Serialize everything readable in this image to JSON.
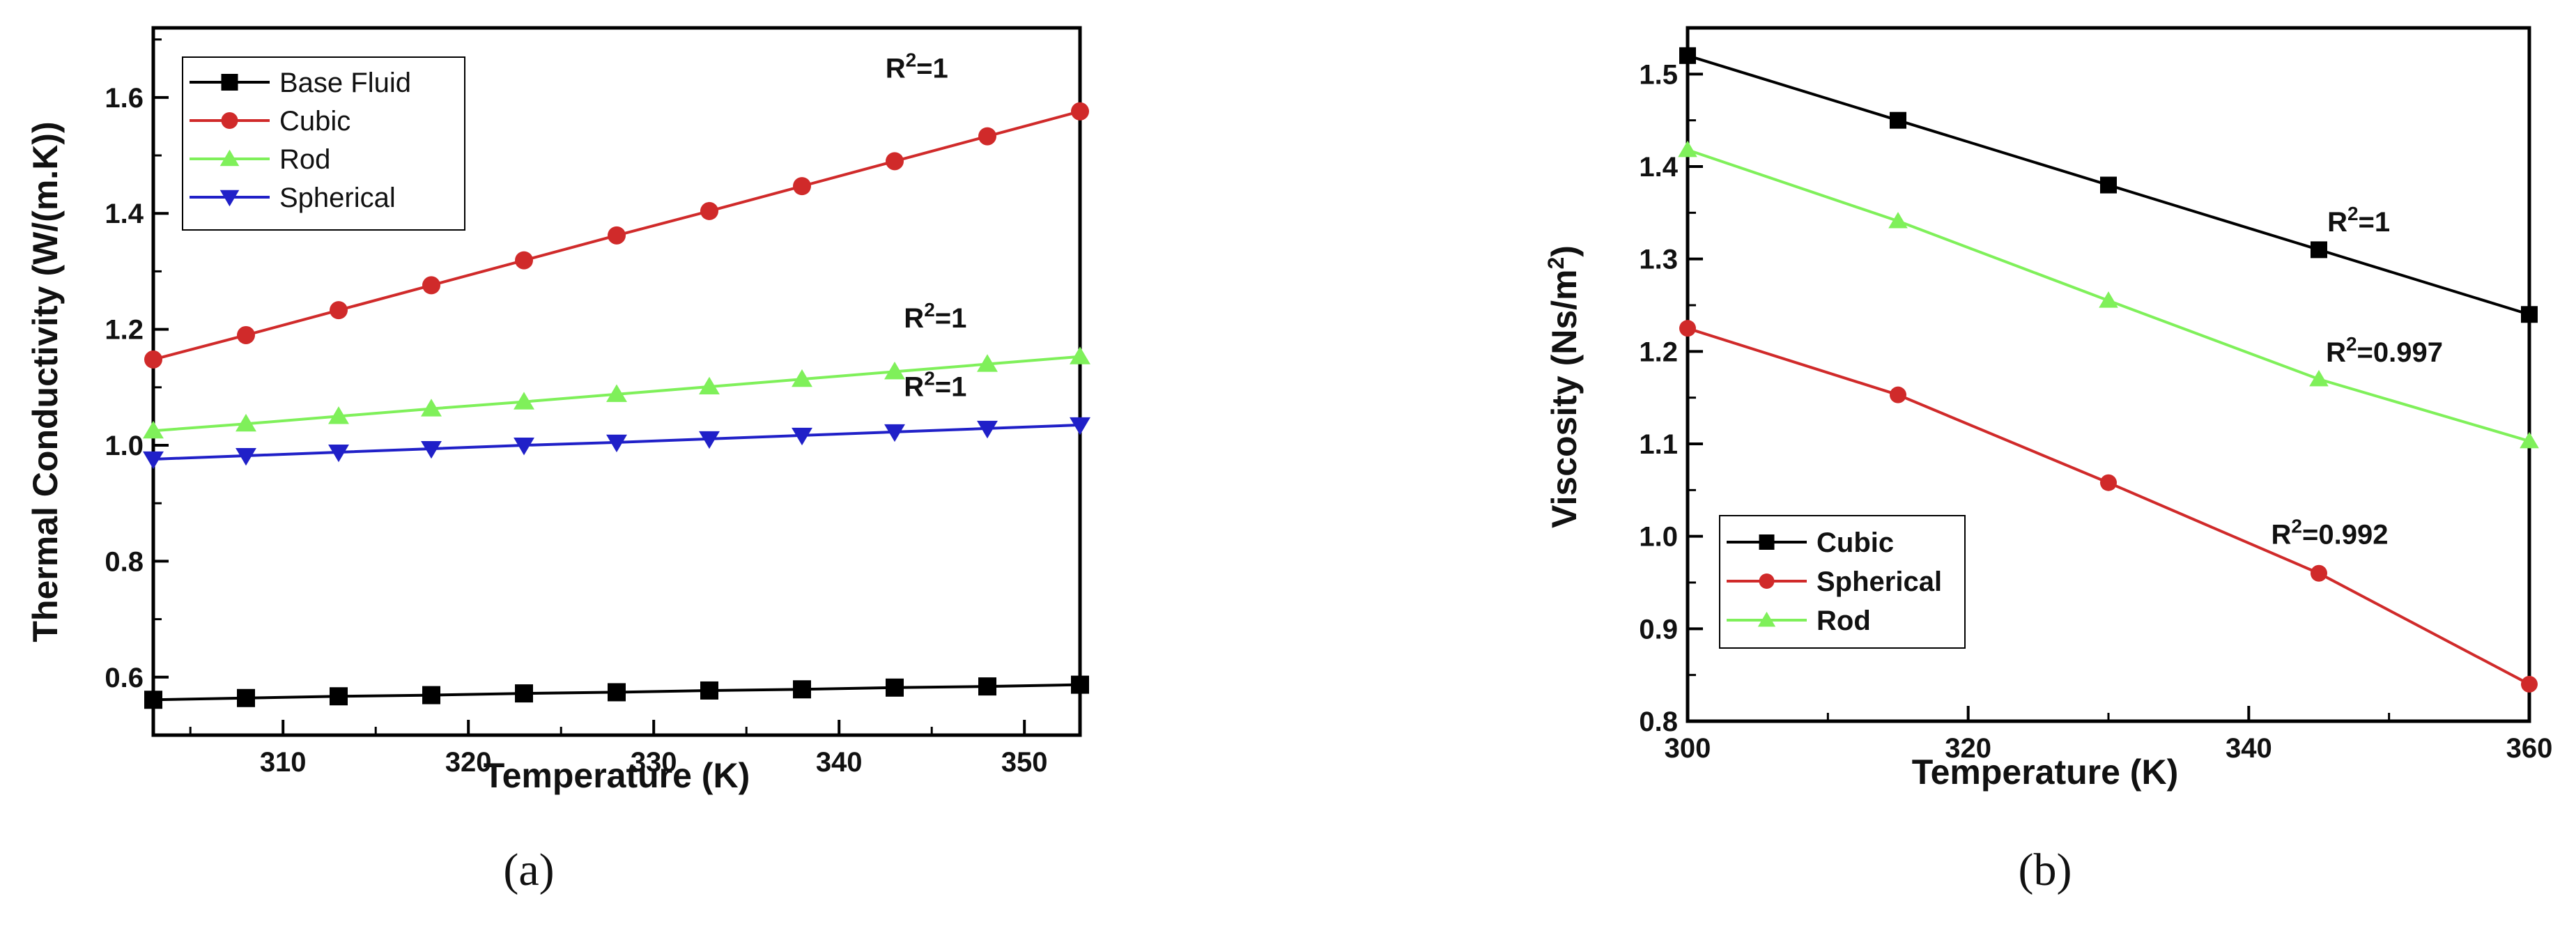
{
  "chart_data": [
    {
      "type": "line",
      "panel_label": "(a)",
      "xlabel": "Temperature (K)",
      "ylabel": "Thermal Conductivity (W/(m.K))",
      "xlim": [
        303,
        353
      ],
      "ylim": [
        0.5,
        1.72
      ],
      "xticks": [
        310,
        320,
        330,
        340,
        350
      ],
      "yticks": [
        0.6,
        0.8,
        1.0,
        1.2,
        1.4,
        1.6
      ],
      "x": [
        303,
        308,
        313,
        318,
        323,
        328,
        333,
        338,
        343,
        348,
        353
      ],
      "legend_position": "top-left",
      "series": [
        {
          "name": "Base Fluid",
          "color": "#000000",
          "marker": "square",
          "values": [
            0.561,
            0.564,
            0.567,
            0.569,
            0.572,
            0.574,
            0.577,
            0.579,
            0.582,
            0.584,
            0.587
          ]
        },
        {
          "name": "Cubic",
          "color": "#d02a2a",
          "marker": "circle",
          "values": [
            1.148,
            1.19,
            1.233,
            1.276,
            1.319,
            1.362,
            1.404,
            1.447,
            1.49,
            1.533,
            1.576
          ]
        },
        {
          "name": "Rod",
          "color": "#7ff05a",
          "marker": "triangle-up",
          "values": [
            1.025,
            1.037,
            1.05,
            1.063,
            1.075,
            1.088,
            1.101,
            1.114,
            1.127,
            1.14,
            1.153
          ]
        },
        {
          "name": "Spherical",
          "color": "#2020c8",
          "marker": "triangle-down",
          "values": [
            0.976,
            0.982,
            0.988,
            0.994,
            1.0,
            1.005,
            1.011,
            1.017,
            1.023,
            1.029,
            1.035
          ]
        }
      ],
      "annotations": [
        {
          "sup_base": "R",
          "sup": "2",
          "rest": "=1",
          "x": 342.5,
          "y": 1.634
        },
        {
          "sup_base": "R",
          "sup": "2",
          "rest": "=1",
          "x": 343.5,
          "y": 1.203
        },
        {
          "sup_base": "R",
          "sup": "2",
          "rest": "=1",
          "x": 343.5,
          "y": 1.085
        }
      ]
    },
    {
      "type": "line",
      "panel_label": "(b)",
      "xlabel": "Temperature (K)",
      "ylabel_main": "Viscosity (Ns/m",
      "ylabel_sup": "2",
      "ylabel_end": ")",
      "xlim": [
        300,
        360
      ],
      "ylim": [
        0.8,
        1.55
      ],
      "xticks": [
        300,
        320,
        340,
        360
      ],
      "yticks": [
        0.8,
        0.9,
        1.0,
        1.1,
        1.2,
        1.3,
        1.4,
        1.5
      ],
      "x": [
        300,
        315,
        330,
        345,
        360
      ],
      "legend_position": "bottom-left",
      "series": [
        {
          "name": "Cubic",
          "color": "#000000",
          "marker": "square",
          "values": [
            1.52,
            1.45,
            1.38,
            1.31,
            1.24
          ]
        },
        {
          "name": "Spherical",
          "color": "#d02a2a",
          "marker": "circle",
          "values": [
            1.225,
            1.153,
            1.058,
            0.96,
            0.84
          ]
        },
        {
          "name": "Rod",
          "color": "#7ff05a",
          "marker": "triangle-up",
          "values": [
            1.418,
            1.341,
            1.255,
            1.17,
            1.103
          ]
        }
      ],
      "annotations": [
        {
          "sup_base": "R",
          "sup": "2",
          "rest": "=1",
          "x": 345.6,
          "y": 1.33
        },
        {
          "sup_base": "R",
          "sup": "2",
          "rest": "=0.997",
          "x": 345.5,
          "y": 1.189
        },
        {
          "sup_base": "R",
          "sup": "2",
          "rest": "=0.992",
          "x": 341.6,
          "y": 0.992
        }
      ]
    }
  ]
}
